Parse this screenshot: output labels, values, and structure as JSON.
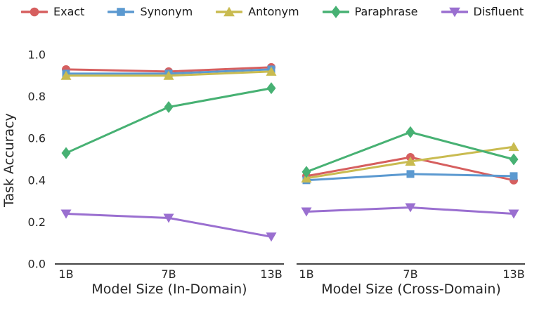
{
  "figure_title": "",
  "chart_data": {
    "type": "line",
    "ylabel": "Task Accuracy",
    "ylim": [
      0.0,
      1.0
    ],
    "yticks": [
      0.0,
      0.2,
      0.4,
      0.6,
      0.8,
      1.0
    ],
    "categories": [
      "1B",
      "7B",
      "13B"
    ],
    "grid": false,
    "legend_position": "top",
    "series": [
      {
        "name": "Exact",
        "color": "#d65f5f",
        "marker": "circle",
        "values": {
          "in_domain": [
            0.93,
            0.92,
            0.94
          ],
          "cross_domain": [
            0.42,
            0.51,
            0.4
          ]
        }
      },
      {
        "name": "Synonym",
        "color": "#5b99d0",
        "marker": "square",
        "values": {
          "in_domain": [
            0.91,
            0.91,
            0.93
          ],
          "cross_domain": [
            0.4,
            0.43,
            0.42
          ]
        }
      },
      {
        "name": "Antonym",
        "color": "#c9bb50",
        "marker": "triangle-up",
        "values": {
          "in_domain": [
            0.9,
            0.9,
            0.92
          ],
          "cross_domain": [
            0.41,
            0.49,
            0.56
          ]
        }
      },
      {
        "name": "Paraphrase",
        "color": "#47b173",
        "marker": "diamond",
        "values": {
          "in_domain": [
            0.53,
            0.75,
            0.84
          ],
          "cross_domain": [
            0.44,
            0.63,
            0.5
          ]
        }
      },
      {
        "name": "Disfluent",
        "color": "#9a6fd0",
        "marker": "triangle-down",
        "values": {
          "in_domain": [
            0.24,
            0.22,
            0.13
          ],
          "cross_domain": [
            0.25,
            0.27,
            0.24
          ]
        }
      }
    ],
    "panels": [
      {
        "key": "in_domain",
        "xlabel": "Model Size (In-Domain)"
      },
      {
        "key": "cross_domain",
        "xlabel": "Model Size (Cross-Domain)"
      }
    ]
  }
}
